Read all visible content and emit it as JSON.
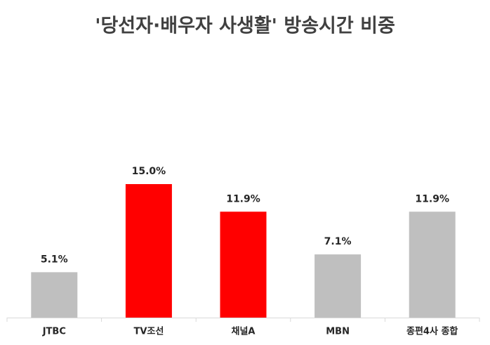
{
  "chart_data": {
    "type": "bar",
    "title": "'당선자·배우자 사생활' 방송시간 비중",
    "categories": [
      "JTBC",
      "TV조선",
      "채널A",
      "MBN",
      "종편4사 종합"
    ],
    "values": [
      5.1,
      15.0,
      11.9,
      7.1,
      11.9
    ],
    "value_labels": [
      "5.1%",
      "15.0%",
      "11.9%",
      "7.1%",
      "11.9%"
    ],
    "colors": [
      "#bfbfbf",
      "#ff0000",
      "#ff0000",
      "#bfbfbf",
      "#bfbfbf"
    ]
  }
}
